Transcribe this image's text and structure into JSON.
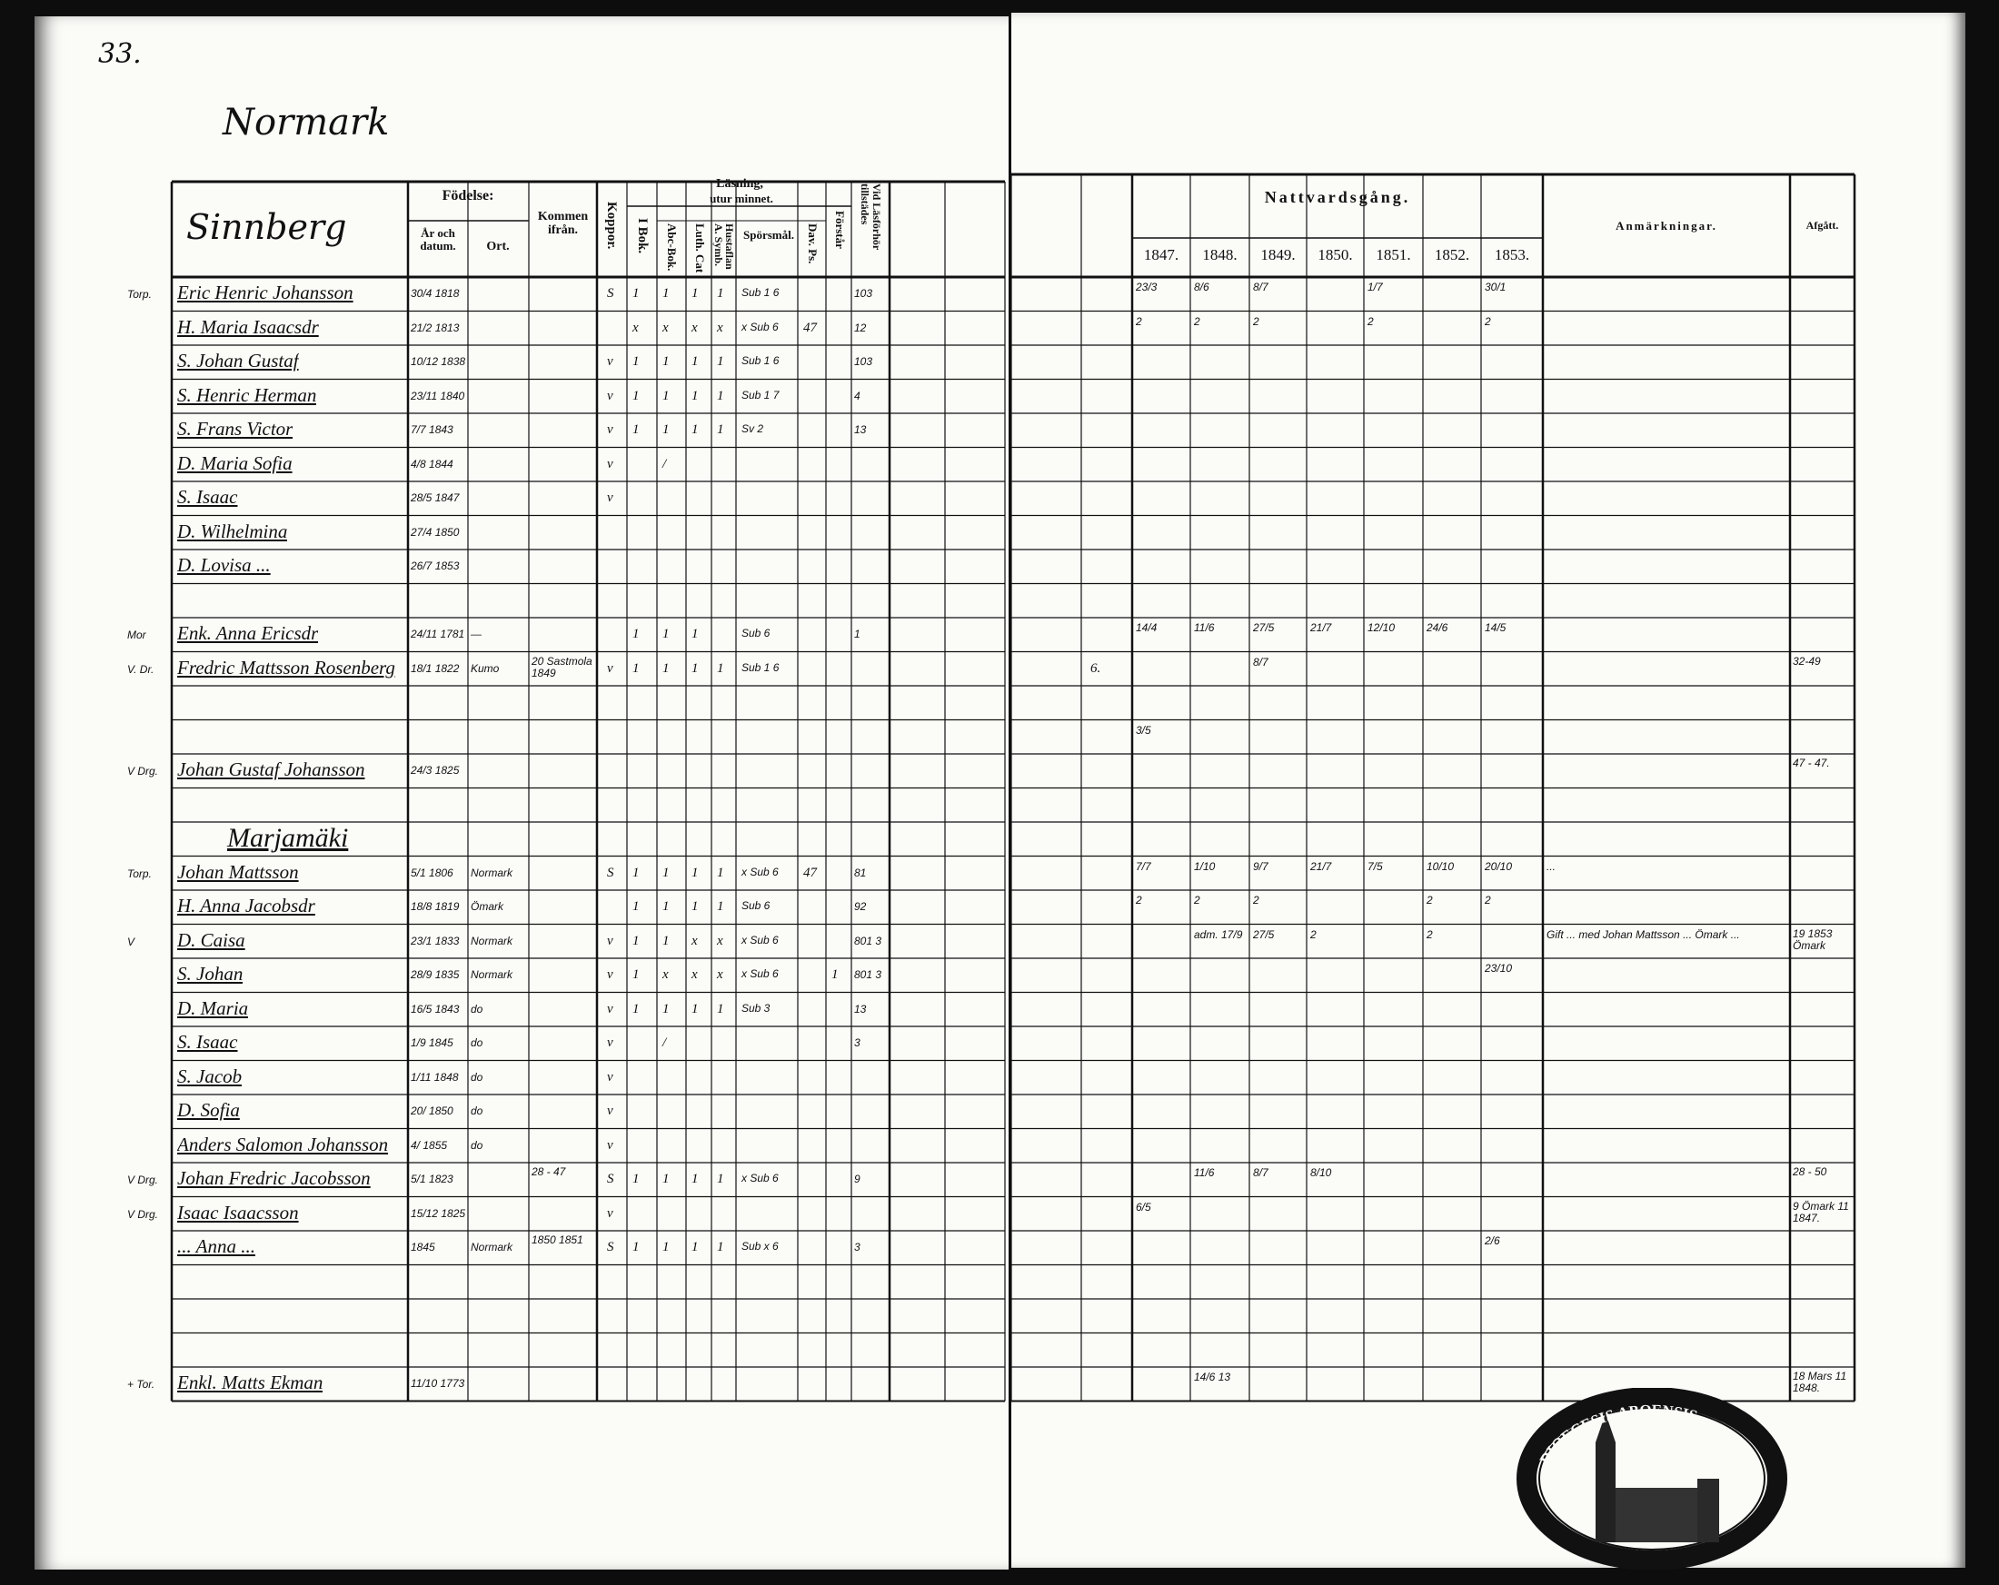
{
  "page_number": "33.",
  "village": "Normark",
  "household_title": "Sinnberg",
  "headers": {
    "fodelse": "Födelse:",
    "ar_och_datum": "År och datum.",
    "ort": "Ort.",
    "kommen_ifran": "Kommen ifrån.",
    "koppor": "Koppor.",
    "lasning": "Läsning,",
    "utur_minnet": "utur minnet.",
    "i_bok": "I Bok.",
    "abc_bok": "Abc-Bok.",
    "luth_cat": "Luth. Cat",
    "hustaflan": "Hustaflan A. Symb.",
    "sporsmal": "Spörsmål.",
    "dav_ps": "Dav. Ps.",
    "forstar": "Förstår",
    "vid_lasforhor": "Vid Läsförhör tillstädes",
    "nattvardsgang": "Nattvardsgång.",
    "years": [
      "1847.",
      "1848.",
      "1849.",
      "1850.",
      "1851.",
      "1852.",
      "1853."
    ],
    "anmarkningar": "Anmärkningar.",
    "afgatt": "Afgått."
  },
  "rows": [
    {
      "margin": "Torp.",
      "name": "Eric Henric Johansson",
      "date": "30/4 1818",
      "koppor": "S",
      "lasning": [
        "1",
        "1",
        "1",
        "1",
        "Sub 1 6",
        ""
      ],
      "lasforhor": "103",
      "nv": [
        "23/3",
        "8/6",
        "8/7",
        "",
        "1/7",
        "",
        "30/1"
      ]
    },
    {
      "margin": "",
      "name": "H. Maria Isaacsdr",
      "date": "21/2 1813",
      "ort": "",
      "lasning": [
        "x",
        "x",
        "x",
        "x",
        "x Sub 6",
        "47"
      ],
      "lasforhor": "12",
      "nv": [
        "2",
        "2",
        "2",
        "",
        "2",
        "",
        "2"
      ]
    },
    {
      "margin": "",
      "name": "S. Johan Gustaf",
      "date": "10/12 1838",
      "koppor": "v",
      "lasning": [
        "1",
        "1",
        "1",
        "1",
        "Sub 1 6",
        ""
      ],
      "lasforhor": "103"
    },
    {
      "margin": "",
      "name": "S. Henric Herman",
      "date": "23/11 1840",
      "koppor": "v",
      "lasning": [
        "1",
        "1",
        "1",
        "1",
        "Sub 1 7",
        ""
      ],
      "lasforhor": "4"
    },
    {
      "margin": "",
      "name": "S. Frans Victor",
      "date": "7/7 1843",
      "koppor": "v",
      "lasning": [
        "1",
        "1",
        "1",
        "1",
        "Sv 2",
        ""
      ],
      "lasforhor": "13"
    },
    {
      "margin": "",
      "name": "D. Maria Sofia",
      "date": "4/8 1844",
      "koppor": "v",
      "lasning": [
        "",
        "/",
        "",
        "",
        "",
        ""
      ]
    },
    {
      "margin": "",
      "name": "S. Isaac",
      "date": "28/5 1847",
      "koppor": "v"
    },
    {
      "margin": "",
      "name": "D. Wilhelmina",
      "date": "27/4 1850"
    },
    {
      "margin": "",
      "name": "D. Lovisa ...",
      "date": "26/7 1853"
    },
    {
      "name": ""
    },
    {
      "margin": "Mor",
      "name": "Enk. Anna Ericsdr",
      "date": "24/11 1781",
      "ort": "—",
      "lasning": [
        "1",
        "1",
        "1",
        "",
        "Sub 6",
        ""
      ],
      "lasforhor": "1",
      "nv": [
        "14/4",
        "11/6",
        "27/5",
        "21/7",
        "12/10",
        "24/6",
        "14/5"
      ]
    },
    {
      "margin": "V. Dr.",
      "name": "Fredric Mattsson Rosenberg",
      "date": "18/1 1822",
      "ort": "Kumo",
      "kommen": "20 Sastmola 1849",
      "koppor": "v",
      "lasning": [
        "1",
        "1",
        "1",
        "1",
        "Sub 1 6",
        ""
      ],
      "pre_nv": "6.",
      "nv": [
        "",
        "",
        "8/7",
        "",
        "",
        "",
        ""
      ],
      "afgatt": "32-49"
    },
    {
      "name": ""
    },
    {
      "name": "",
      "nv": [
        "3/5",
        "",
        "",
        "",
        "",
        "",
        ""
      ]
    },
    {
      "margin": "V Drg.",
      "name": "Johan Gustaf Johansson",
      "date": "24/3 1825",
      "afgatt": "47 - 47."
    },
    {
      "name": ""
    },
    {
      "heading": "Marjamäki"
    },
    {
      "margin": "Torp.",
      "name": "Johan Mattsson",
      "date": "5/1 1806",
      "ort": "Normark",
      "koppor": "S",
      "lasning": [
        "1",
        "1",
        "1",
        "1",
        "x Sub 6",
        "47"
      ],
      "lasforhor": "81",
      "nv": [
        "7/7",
        "1/10",
        "9/7",
        "21/7",
        "7/5",
        "10/10",
        "20/10"
      ],
      "anm": "..."
    },
    {
      "margin": "",
      "name": "H. Anna Jacobsdr",
      "date": "18/8 1819",
      "ort": "Ömark",
      "lasning": [
        "1",
        "1",
        "1",
        "1",
        "Sub 6",
        ""
      ],
      "lasforhor": "92",
      "nv": [
        "2",
        "2",
        "2",
        "",
        "",
        "2",
        "2"
      ]
    },
    {
      "margin": "V",
      "name": "D. Caisa",
      "date": "23/1 1833",
      "ort": "Normark",
      "koppor": "v",
      "lasning": [
        "1",
        "1",
        "x",
        "x",
        "x Sub 6",
        ""
      ],
      "lasforhor": "801 3",
      "nv": [
        "",
        "adm. 17/9",
        "27/5",
        "2",
        "",
        "2",
        ""
      ],
      "anm": "Gift ... med Johan Mattsson ... Ömark ...",
      "afgatt": "19 1853 Ömark"
    },
    {
      "margin": "",
      "name": "S. Johan",
      "date": "28/9 1835",
      "ort": "Normark",
      "koppor": "v",
      "lasning": [
        "1",
        "x",
        "x",
        "x",
        "x Sub 6",
        ""
      ],
      "forstar": "1",
      "lasforhor": "801 3",
      "nv": [
        "",
        "",
        "",
        "",
        "",
        "",
        "23/10"
      ]
    },
    {
      "margin": "",
      "name": "D. Maria",
      "date": "16/5 1843",
      "ort": "do",
      "koppor": "v",
      "lasning": [
        "1",
        "1",
        "1",
        "1",
        "Sub 3",
        ""
      ],
      "lasforhor": "13"
    },
    {
      "margin": "",
      "name": "S. Isaac",
      "date": "1/9 1845",
      "ort": "do",
      "koppor": "v",
      "lasning": [
        "",
        "/",
        "",
        "",
        "",
        ""
      ],
      "lasforhor": "3"
    },
    {
      "margin": "",
      "name": "S. Jacob",
      "date": "1/11 1848",
      "ort": "do",
      "koppor": "v"
    },
    {
      "margin": "",
      "name": "D. Sofia",
      "date": "20/ 1850",
      "ort": "do",
      "koppor": "v"
    },
    {
      "margin": "",
      "name": "Anders Salomon Johansson",
      "date": "4/ 1855",
      "ort": "do",
      "koppor": "v"
    },
    {
      "margin": "V Drg.",
      "name": "Johan Fredric Jacobsson",
      "date": "5/1 1823",
      "kommen": "28 - 47",
      "koppor": "S",
      "lasning": [
        "1",
        "1",
        "1",
        "1",
        "x Sub 6",
        ""
      ],
      "lasforhor": "9",
      "nv": [
        "",
        "11/6",
        "8/7",
        "8/10",
        "",
        "",
        ""
      ],
      "afgatt": "28 - 50"
    },
    {
      "margin": "V Drg.",
      "name": "Isaac Isaacsson",
      "date": "15/12 1825",
      "koppor": "v",
      "nv": [
        "6/5",
        "",
        "",
        "",
        "",
        "",
        ""
      ],
      "afgatt": "9 Ömark 11 1847."
    },
    {
      "margin": "",
      "name": "... Anna ...",
      "date": "1845",
      "ort": "Normark",
      "kommen": "1850 1851",
      "koppor": "S",
      "lasning": [
        "1",
        "1",
        "1",
        "1",
        "Sub x 6",
        ""
      ],
      "lasforhor": "3",
      "nv": [
        "",
        "",
        "",
        "",
        "",
        "",
        "2/6"
      ]
    },
    {
      "name": ""
    },
    {
      "name": ""
    },
    {
      "name": ""
    },
    {
      "margin": "+ Tor.",
      "name": "Enkl. Matts Ekman",
      "date": "11/10 1773",
      "nv": [
        "",
        "14/6 13",
        "",
        "",
        "",
        "",
        ""
      ],
      "afgatt": "18 Mars 11 1848."
    }
  ],
  "stamp_text": "DIOECESIS ABOENSIS MAGNI PRINCIPAT.",
  "colors": {
    "paper": "#fbfbf8",
    "ink": "#111111",
    "background": "#0d0d0d"
  }
}
